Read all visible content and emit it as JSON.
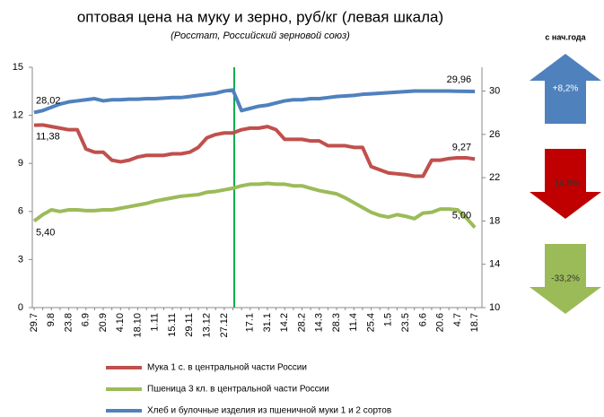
{
  "chart_data": {
    "type": "line",
    "title": "оптовая цена на муку и зерно, руб/кг (левая шкала)",
    "subtitle": "(Росстат, Российский зерновой союз)",
    "categories": [
      "29.7",
      null,
      "9.8",
      null,
      "23.8",
      null,
      "6.9",
      null,
      "20.9",
      null,
      "4.10",
      null,
      "18.10",
      null,
      "1.11",
      null,
      "15.11",
      null,
      "29.11",
      null,
      "13.12",
      null,
      "27.12",
      null,
      null,
      "17.1",
      null,
      "31.1",
      null,
      "14.2",
      null,
      "28.2",
      null,
      "14.3",
      null,
      "28.3",
      null,
      "11.4",
      null,
      "25.4",
      null,
      "1.5",
      null,
      "23.5",
      null,
      "6.6",
      null,
      "20.6",
      null,
      "4.7",
      null,
      "18.7"
    ],
    "ylim": [
      0,
      15
    ],
    "yticks": [
      0,
      3,
      6,
      9,
      12,
      15
    ],
    "y2lim": [
      10,
      32.2
    ],
    "y2ticks": [
      10,
      14,
      18,
      22,
      26,
      30
    ],
    "series": [
      {
        "name": "Мука 1 с. в центральной части России",
        "color": "#c0504d",
        "values": [
          11.38,
          11.4,
          11.3,
          11.2,
          11.1,
          11.1,
          9.9,
          9.7,
          9.7,
          9.2,
          9.1,
          9.2,
          9.4,
          9.5,
          9.5,
          9.5,
          9.6,
          9.6,
          9.7,
          10.0,
          10.6,
          10.8,
          10.9,
          10.9,
          11.1,
          11.2,
          11.2,
          11.3,
          11.1,
          10.5,
          10.5,
          10.5,
          10.4,
          10.4,
          10.1,
          10.1,
          10.1,
          10.0,
          10.0,
          8.8,
          8.6,
          8.4,
          8.35,
          8.3,
          8.2,
          8.2,
          9.2,
          9.2,
          9.3,
          9.35,
          9.35,
          9.27
        ],
        "value_labels": [
          "11,38",
          null,
          null,
          null,
          null,
          null,
          null,
          null,
          null,
          null,
          null,
          null,
          null,
          null,
          null,
          null,
          null,
          null,
          null,
          null,
          null,
          null,
          null,
          null,
          null,
          null,
          null,
          null,
          null,
          null,
          null,
          null,
          null,
          null,
          null,
          null,
          null,
          null,
          null,
          null,
          null,
          null,
          null,
          null,
          null,
          null,
          null,
          null,
          null,
          null,
          null,
          "9,27"
        ]
      },
      {
        "name": "Пшеница 3 кл. в центральной части России",
        "color": "#9bbb59",
        "values": [
          5.4,
          5.8,
          6.1,
          6.0,
          6.1,
          6.1,
          6.05,
          6.05,
          6.1,
          6.1,
          6.2,
          6.3,
          6.4,
          6.5,
          6.65,
          6.75,
          6.85,
          6.95,
          7.0,
          7.05,
          7.2,
          7.25,
          7.35,
          7.45,
          7.6,
          7.7,
          7.7,
          7.75,
          7.7,
          7.7,
          7.6,
          7.6,
          7.45,
          7.3,
          7.2,
          7.1,
          6.85,
          6.55,
          6.25,
          5.95,
          5.75,
          5.65,
          5.8,
          5.7,
          5.55,
          5.9,
          5.95,
          6.15,
          6.15,
          6.1,
          5.6,
          5.0
        ],
        "value_labels": [
          "5,40",
          null,
          null,
          null,
          null,
          null,
          null,
          null,
          null,
          null,
          null,
          null,
          null,
          null,
          null,
          null,
          null,
          null,
          null,
          null,
          null,
          null,
          null,
          null,
          null,
          null,
          null,
          null,
          null,
          null,
          null,
          null,
          null,
          null,
          null,
          null,
          null,
          null,
          null,
          null,
          null,
          null,
          null,
          null,
          null,
          null,
          null,
          null,
          null,
          null,
          null,
          "5,00"
        ]
      },
      {
        "name": "Хлеб и булочные изделия из пшеничной муки 1 и 2 сортов",
        "color": "#4f81bd",
        "axis": "y2",
        "values": [
          28.02,
          28.2,
          28.5,
          28.8,
          29.0,
          29.1,
          29.2,
          29.3,
          29.1,
          29.2,
          29.2,
          29.25,
          29.25,
          29.3,
          29.3,
          29.35,
          29.4,
          29.4,
          29.5,
          29.6,
          29.7,
          29.8,
          30.0,
          30.1,
          28.2,
          28.4,
          28.6,
          28.7,
          28.9,
          29.1,
          29.2,
          29.2,
          29.3,
          29.3,
          29.4,
          29.5,
          29.55,
          29.6,
          29.7,
          29.75,
          29.8,
          29.85,
          29.9,
          29.95,
          30.0,
          30.0,
          30.0,
          30.0,
          30.0,
          29.98,
          29.97,
          29.96
        ],
        "value_labels": [
          "28,02",
          null,
          null,
          null,
          null,
          null,
          null,
          null,
          null,
          null,
          null,
          null,
          null,
          null,
          null,
          null,
          null,
          null,
          null,
          null,
          null,
          null,
          null,
          null,
          null,
          null,
          null,
          null,
          null,
          null,
          null,
          null,
          null,
          null,
          null,
          null,
          null,
          null,
          null,
          null,
          null,
          null,
          null,
          null,
          null,
          null,
          null,
          null,
          null,
          null,
          null,
          "29,96"
        ]
      }
    ]
  },
  "change_panel": {
    "title": "с нач.года",
    "items": [
      {
        "value": 8.2,
        "label": "+8,2%",
        "color": "#4f81bd"
      },
      {
        "value": -14.6,
        "label": "-14,6%",
        "color": "#c00000"
      },
      {
        "value": -33.2,
        "label": "-33,2%",
        "color": "#9bbb59"
      }
    ]
  }
}
